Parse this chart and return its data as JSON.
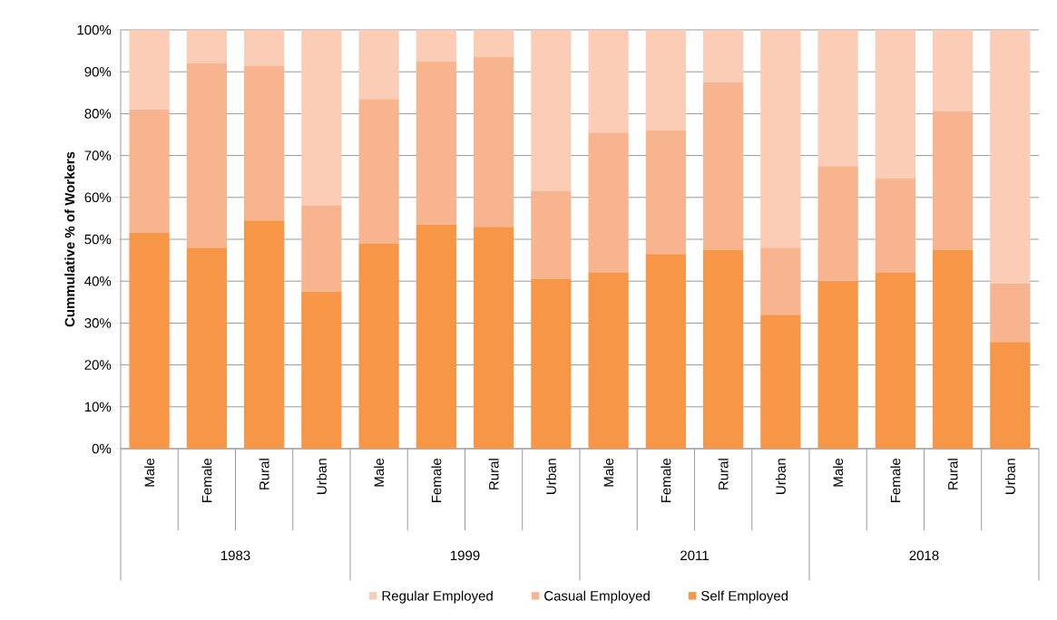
{
  "chart_data": {
    "type": "bar",
    "stacked": true,
    "ylabel": "Cummulative % of Workers",
    "categories": [
      "Male",
      "Female",
      "Rural",
      "Urban",
      "Male",
      "Female",
      "Rural",
      "Urban",
      "Male",
      "Female",
      "Rural",
      "Urban",
      "Male",
      "Female",
      "Rural",
      "Urban"
    ],
    "annotations": [
      "1983",
      "1999",
      "2011",
      "2018"
    ],
    "series": [
      {
        "name": "Self Employed",
        "color": "#f79646",
        "values": [
          51.5,
          48,
          54.5,
          37.5,
          49,
          53.5,
          53,
          40.5,
          42,
          46.5,
          47.5,
          32,
          40,
          42,
          47.5,
          25.5
        ]
      },
      {
        "name": "Casual Employed",
        "color": "#f8b48f",
        "values": [
          29.5,
          44,
          37,
          20.5,
          34.5,
          39,
          40.5,
          21,
          33.5,
          29.5,
          40,
          16,
          27.5,
          22.5,
          33,
          14
        ]
      },
      {
        "name": "Regular Employed",
        "color": "#fbcdb7",
        "values": [
          19,
          8,
          8.5,
          42,
          16.5,
          7.5,
          6.5,
          38.5,
          24.5,
          24,
          12.5,
          52,
          32.5,
          35.5,
          19.5,
          60.5
        ]
      }
    ],
    "ylim": [
      0,
      100
    ],
    "yticks": [
      {
        "value": 0,
        "label": "0%"
      },
      {
        "value": 10,
        "label": "10%"
      },
      {
        "value": 20,
        "label": "20%"
      },
      {
        "value": 30,
        "label": "30%"
      },
      {
        "value": 40,
        "label": "40%"
      },
      {
        "value": 50,
        "label": "50%"
      },
      {
        "value": 60,
        "label": "60%"
      },
      {
        "value": 70,
        "label": "70%"
      },
      {
        "value": 80,
        "label": "80%"
      },
      {
        "value": 90,
        "label": "90%"
      },
      {
        "value": 100,
        "label": "100%"
      }
    ],
    "grid": "y",
    "legend": "bottom"
  }
}
